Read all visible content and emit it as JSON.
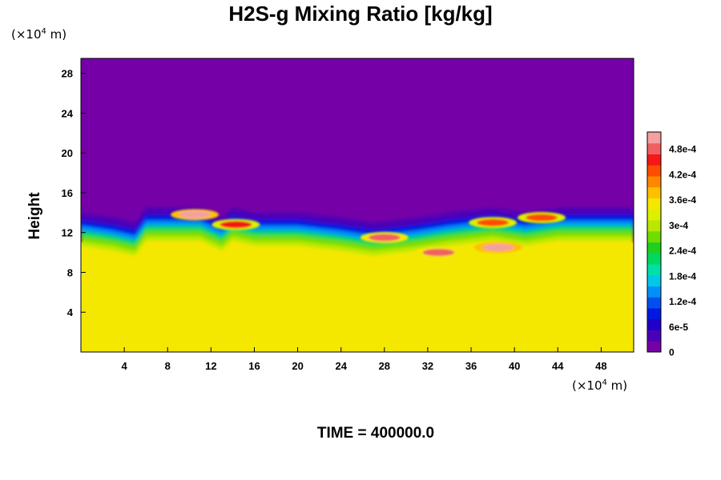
{
  "chart_data": {
    "type": "heatmap",
    "title": "H2S-g Mixing Ratio [kg/kg]",
    "xunit_prefix": "(×10",
    "xunit_exp": "4",
    "xunit_suffix": " m)",
    "yunit_prefix": "(×10",
    "yunit_exp": "4",
    "yunit_suffix": " m)",
    "ylabel": "Height",
    "footer": "TIME = 400000.0",
    "xlim": [
      0,
      51
    ],
    "ylim": [
      0,
      29.5
    ],
    "xticks": [
      4,
      8,
      12,
      16,
      20,
      24,
      28,
      32,
      36,
      40,
      44,
      48
    ],
    "yticks": [
      4,
      8,
      12,
      16,
      20,
      24,
      28
    ],
    "colorbar": {
      "min": 0,
      "max": 0.00052,
      "tick_values": [
        0,
        6e-05,
        0.00012,
        0.00018,
        0.00024,
        0.0003,
        0.00036,
        0.00042,
        0.00048
      ],
      "tick_labels": [
        "0",
        "6e-5",
        "1.2e-4",
        "1.8e-4",
        "2.4e-4",
        "3e-4",
        "3.6e-4",
        "4.2e-4",
        "4.8e-4"
      ],
      "colors": [
        "#7500a8",
        "#4b00b8",
        "#2000c8",
        "#0018e0",
        "#0050f0",
        "#0090f8",
        "#00c8e8",
        "#00e0a8",
        "#00d860",
        "#20d020",
        "#70dc00",
        "#b8e800",
        "#dcf000",
        "#f4e800",
        "#ffc000",
        "#ff8800",
        "#ff4c00",
        "#f41818",
        "#f06060",
        "#f4a0a0"
      ]
    },
    "field": {
      "upper_value": 0,
      "lower_value": 0.00034,
      "interface_height_x": [
        0,
        3,
        5,
        6,
        8,
        11,
        13,
        14,
        16,
        20,
        24,
        27,
        31,
        34,
        38,
        41,
        44,
        47,
        51
      ],
      "interface_height_y": [
        14,
        13.5,
        13,
        14.5,
        14.5,
        14.5,
        13.5,
        14.5,
        14,
        14,
        13.5,
        13,
        13.5,
        14,
        14.5,
        14,
        14.5,
        14.5,
        14.5
      ],
      "plume_features": [
        {
          "x": 10.5,
          "y": 13.8,
          "value": 0.0005
        },
        {
          "x": 14.3,
          "y": 12.8,
          "value": 0.00045
        },
        {
          "x": 28,
          "y": 11.5,
          "value": 0.00047
        },
        {
          "x": 33,
          "y": 10,
          "value": 0.00047
        },
        {
          "x": 38.5,
          "y": 10.5,
          "value": 0.0005
        },
        {
          "x": 38,
          "y": 13,
          "value": 0.00042
        },
        {
          "x": 42.5,
          "y": 13.5,
          "value": 0.00042
        }
      ]
    }
  }
}
